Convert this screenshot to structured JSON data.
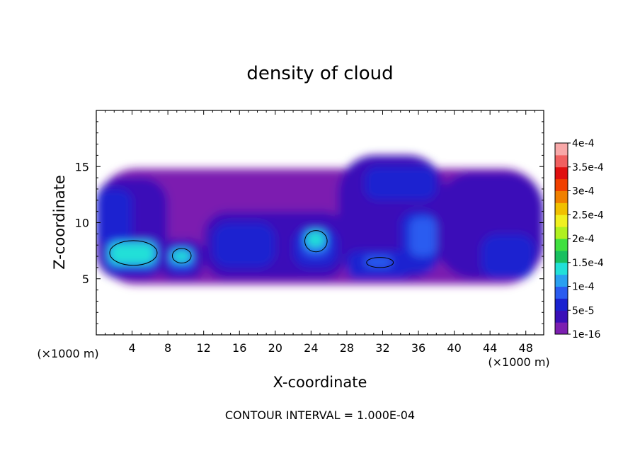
{
  "chart_data": {
    "type": "heatmap",
    "title": "density of cloud",
    "xlabel": "X-coordinate",
    "ylabel": "Z-coordinate",
    "x_unit": "(×1000 m)",
    "y_unit": "(×1000 m)",
    "xlim": [
      0,
      50
    ],
    "ylim": [
      0,
      20
    ],
    "x_ticks": [
      4,
      8,
      12,
      16,
      20,
      24,
      28,
      32,
      36,
      40,
      44,
      48
    ],
    "y_ticks": [
      5,
      10,
      15
    ],
    "footer": "CONTOUR INTERVAL = 1.000E-04",
    "colorbar": {
      "labels": [
        "1e-16",
        "5e-5",
        "1e-4",
        "1.5e-4",
        "2e-4",
        "2.5e-4",
        "3e-4",
        "3.5e-4",
        "4e-4"
      ],
      "colors": [
        "#7c1fb0",
        "#3a0fb8",
        "#1a22d0",
        "#2a5cf0",
        "#2aa0f0",
        "#22e0d8",
        "#18c060",
        "#40e040",
        "#b0f020",
        "#f0f020",
        "#f0c000",
        "#f08000",
        "#f04000",
        "#e01010",
        "#f06060",
        "#f8a8a8"
      ]
    },
    "cloud_layers": [
      {
        "level": "1e-16",
        "color": "#7c1fb0",
        "regions": [
          {
            "x": [
              0,
              50
            ],
            "z": [
              4.5,
              14.8
            ]
          }
        ]
      },
      {
        "level": "2.5e-5",
        "color": "#3a0fb8",
        "regions": [
          {
            "x": [
              0,
              8
            ],
            "z": [
              5,
              14
            ]
          },
          {
            "x": [
              7,
              12
            ],
            "z": [
              5,
              8.5
            ]
          },
          {
            "x": [
              12,
              28
            ],
            "z": [
              5,
              11
            ]
          },
          {
            "x": [
              27,
              39
            ],
            "z": [
              5,
              16
            ]
          },
          {
            "x": [
              38,
              50
            ],
            "z": [
              5,
              14.5
            ]
          }
        ]
      },
      {
        "level": "5e-5",
        "color": "#1a22d0",
        "regions": [
          {
            "x": [
              0,
              4
            ],
            "z": [
              8,
              13
            ]
          },
          {
            "x": [
              1,
              7
            ],
            "z": [
              5.5,
              8.5
            ]
          },
          {
            "x": [
              8,
              11
            ],
            "z": [
              5.5,
              8
            ]
          },
          {
            "x": [
              13,
              20
            ],
            "z": [
              6,
              10
            ]
          },
          {
            "x": [
              22,
              27
            ],
            "z": [
              6,
              9.5
            ]
          },
          {
            "x": [
              28,
              35
            ],
            "z": [
              5,
              7.5
            ]
          },
          {
            "x": [
              34,
              38
            ],
            "z": [
              5.5,
              11
            ]
          },
          {
            "x": [
              30,
              38
            ],
            "z": [
              12,
              15
            ]
          },
          {
            "x": [
              43,
              49
            ],
            "z": [
              5,
              9
            ]
          }
        ]
      },
      {
        "level": "1e-4",
        "color": "#2a5cf0",
        "regions": [
          {
            "x": [
              1,
              7
            ],
            "z": [
              6,
              8.5
            ]
          },
          {
            "x": [
              8,
              11
            ],
            "z": [
              6,
              7.8
            ]
          },
          {
            "x": [
              23,
              26
            ],
            "z": [
              7,
              9.5
            ]
          },
          {
            "x": [
              30,
              33
            ],
            "z": [
              6,
              7
            ]
          },
          {
            "x": [
              35,
              38
            ],
            "z": [
              7,
              10.5
            ]
          }
        ]
      },
      {
        "level": "1.5e-4",
        "color": "#22e0d8",
        "regions": [
          {
            "x": [
              1.5,
              6.5
            ],
            "z": [
              6.3,
              8.2
            ]
          },
          {
            "x": [
              8.5,
              10.5
            ],
            "z": [
              6.5,
              7.5
            ]
          },
          {
            "x": [
              23.5,
              25.5
            ],
            "z": [
              7.8,
              9.2
            ]
          }
        ]
      }
    ],
    "contour_1e-4": [
      {
        "x": [
          1.5,
          6.8
        ],
        "z": [
          6.2,
          8.4
        ]
      },
      {
        "x": [
          8.5,
          10.6
        ],
        "z": [
          6.4,
          7.7
        ]
      },
      {
        "x": [
          23.3,
          25.8
        ],
        "z": [
          7.4,
          9.3
        ]
      },
      {
        "x": [
          30.2,
          33.2
        ],
        "z": [
          6.0,
          6.9
        ]
      }
    ]
  }
}
